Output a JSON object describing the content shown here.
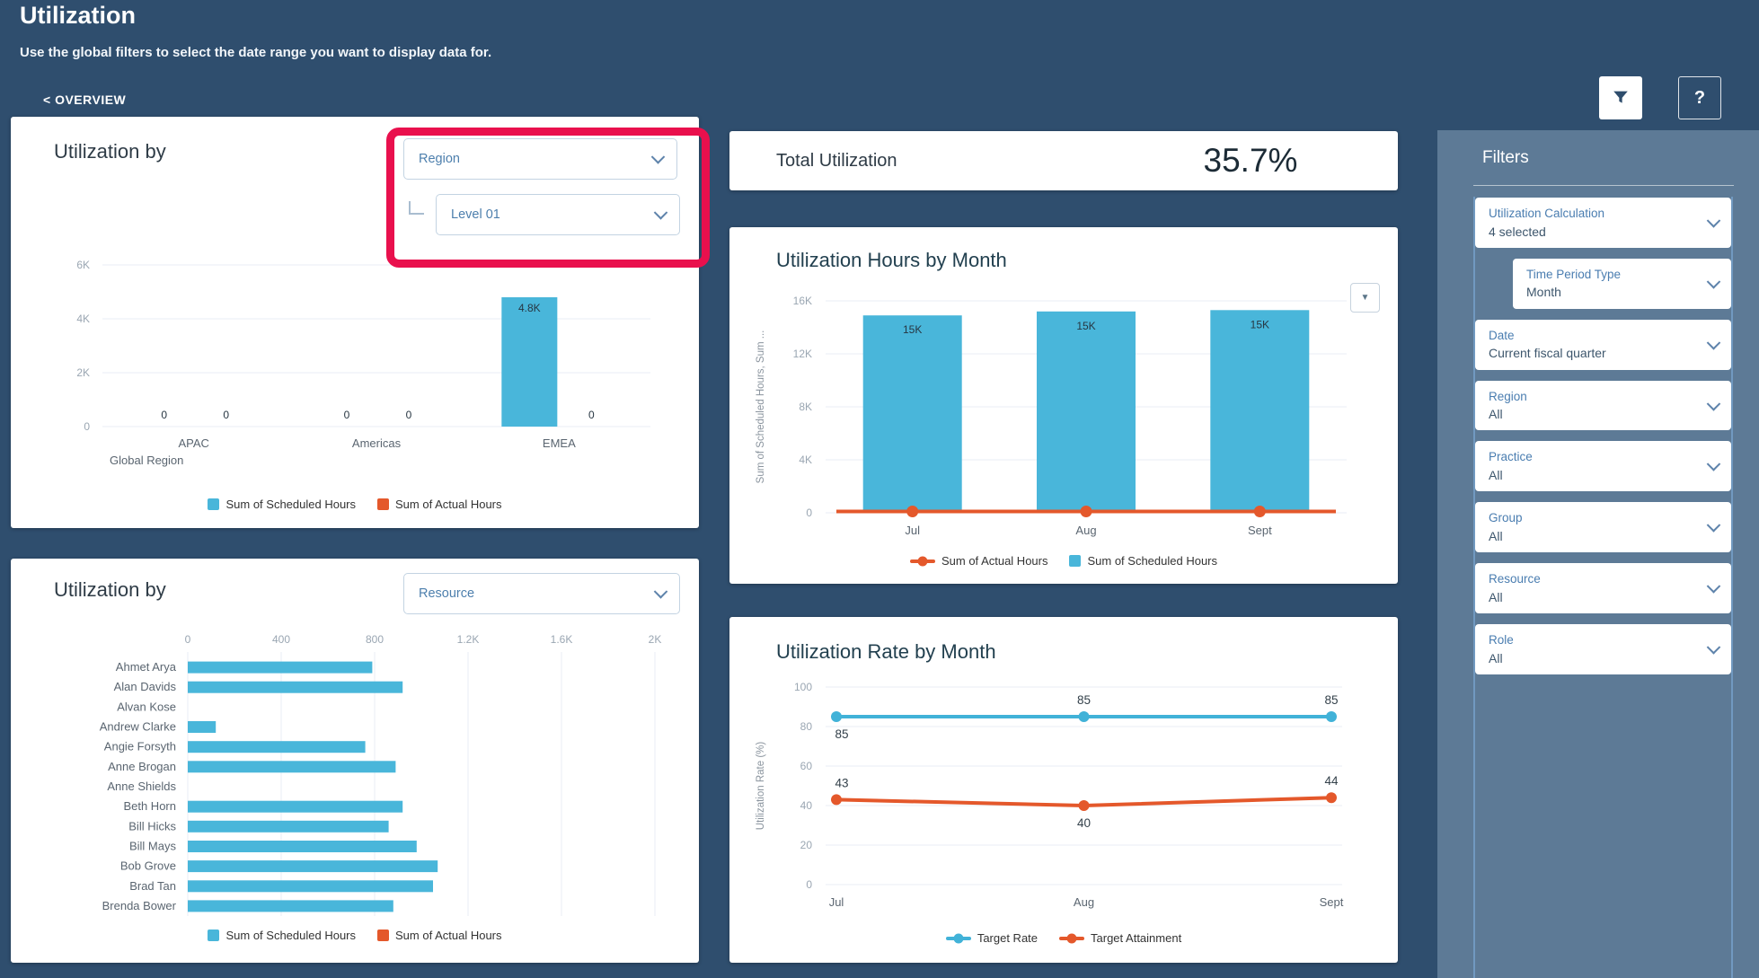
{
  "header": {
    "title": "Utilization",
    "subtitle": "Use the global filters to select the date range you want to display data for.",
    "back_link": "< OVERVIEW",
    "help_label": "?"
  },
  "card_region": {
    "title": "Utilization by",
    "dimension_value": "Region",
    "level_value": "Level 01"
  },
  "card_resource": {
    "title": "Utilization by",
    "dimension_value": "Resource"
  },
  "card_total": {
    "title": "Total Utilization",
    "value": "35.7%"
  },
  "card_hours": {
    "title": "Utilization Hours by Month",
    "mini_dropdown": "▼"
  },
  "card_rate": {
    "title": "Utilization Rate by Month"
  },
  "filters": {
    "heading": "Filters",
    "items": [
      {
        "label": "Utilization Calculation",
        "value": "4 selected"
      },
      {
        "label": "Time Period Type",
        "value": "Month"
      },
      {
        "label": "Date",
        "value": "Current fiscal quarter"
      },
      {
        "label": "Region",
        "value": "All"
      },
      {
        "label": "Practice",
        "value": "All"
      },
      {
        "label": "Group",
        "value": "All"
      },
      {
        "label": "Resource",
        "value": "All"
      },
      {
        "label": "Role",
        "value": "All"
      }
    ]
  },
  "colors": {
    "background": "#2F4E6E",
    "panel": "#5D7A96",
    "accent_blue": "#49B6DA",
    "accent_orange": "#E4582B",
    "line_blue": "#41B2D8",
    "highlight_red": "#E9104D"
  },
  "chart_data": {
    "utilization_by_region": {
      "type": "bar",
      "categories": [
        "APAC",
        "Americas",
        "EMEA"
      ],
      "series": [
        {
          "name": "Sum of Scheduled Hours",
          "color": "#49B6DA",
          "values": [
            0,
            0,
            4800
          ],
          "labels": [
            "0",
            "0",
            "4.8K"
          ]
        },
        {
          "name": "Sum of Actual Hours",
          "color": "#E4582B",
          "values": [
            0,
            0,
            0
          ],
          "labels": [
            "0",
            "0",
            "0"
          ]
        }
      ],
      "xlabel": "Global Region",
      "ylim": [
        0,
        6000
      ],
      "yticks": [
        {
          "v": 0,
          "label": "0"
        },
        {
          "v": 2000,
          "label": "2K"
        },
        {
          "v": 4000,
          "label": "4K"
        },
        {
          "v": 6000,
          "label": "6K"
        }
      ],
      "legend_position": "bottom"
    },
    "utilization_by_resource": {
      "type": "hbar",
      "categories": [
        "Ahmet Arya",
        "Alan Davids",
        "Alvan Kose",
        "Andrew Clarke",
        "Angie Forsyth",
        "Anne Brogan",
        "Anne Shields",
        "Beth Horn",
        "Bill Hicks",
        "Bill Mays",
        "Bob Grove",
        "Brad Tan",
        "Brenda Bower"
      ],
      "series": [
        {
          "name": "Sum of Scheduled Hours",
          "color": "#49B6DA",
          "values": [
            790,
            920,
            0,
            120,
            760,
            890,
            0,
            920,
            860,
            980,
            1070,
            1050,
            880
          ]
        },
        {
          "name": "Sum of Actual Hours",
          "color": "#E4582B",
          "values": [
            0,
            0,
            0,
            0,
            0,
            0,
            0,
            0,
            0,
            0,
            0,
            0,
            0
          ]
        }
      ],
      "xlim": [
        0,
        2000
      ],
      "xticks": [
        {
          "v": 0,
          "label": "0"
        },
        {
          "v": 400,
          "label": "400"
        },
        {
          "v": 800,
          "label": "800"
        },
        {
          "v": 1200,
          "label": "1.2K"
        },
        {
          "v": 1600,
          "label": "1.6K"
        },
        {
          "v": 2000,
          "label": "2K"
        }
      ],
      "legend_position": "bottom"
    },
    "hours_by_month": {
      "type": "bar+line",
      "title": "Utilization Hours by Month",
      "categories": [
        "Jul",
        "Aug",
        "Sept"
      ],
      "bar_series": {
        "name": "Sum of Scheduled Hours",
        "color": "#49B6DA",
        "values": [
          14900,
          15200,
          15300
        ],
        "labels": [
          "15K",
          "15K",
          "15K"
        ]
      },
      "line_series": {
        "name": "Sum of Actual Hours",
        "color": "#E4582B",
        "values": [
          100,
          100,
          100
        ]
      },
      "ylabel": "Sum of Scheduled Hours, Sum ...",
      "ylim": [
        0,
        16000
      ],
      "yticks": [
        {
          "v": 0,
          "label": "0"
        },
        {
          "v": 4000,
          "label": "4K"
        },
        {
          "v": 8000,
          "label": "8K"
        },
        {
          "v": 12000,
          "label": "12K"
        },
        {
          "v": 16000,
          "label": "16K"
        }
      ],
      "legend_position": "bottom"
    },
    "rate_by_month": {
      "type": "line",
      "title": "Utilization Rate by Month",
      "categories": [
        "Jul",
        "Aug",
        "Sept"
      ],
      "series": [
        {
          "name": "Target Rate",
          "color": "#41B2D8",
          "values": [
            85,
            85,
            85
          ],
          "labels": [
            "85",
            "85",
            "85"
          ],
          "label_pos": [
            "below",
            "above",
            "above"
          ]
        },
        {
          "name": "Target Attainment",
          "color": "#E4582B",
          "values": [
            43,
            40,
            44
          ],
          "labels": [
            "43",
            "40",
            "44"
          ],
          "label_pos": [
            "above",
            "below",
            "above"
          ]
        }
      ],
      "ylabel": "Utilization Rate (%)",
      "ylim": [
        0,
        100
      ],
      "yticks": [
        {
          "v": 0,
          "label": "0"
        },
        {
          "v": 20,
          "label": "20"
        },
        {
          "v": 40,
          "label": "40"
        },
        {
          "v": 60,
          "label": "60"
        },
        {
          "v": 80,
          "label": "80"
        },
        {
          "v": 100,
          "label": "100"
        }
      ],
      "legend_position": "bottom"
    }
  }
}
